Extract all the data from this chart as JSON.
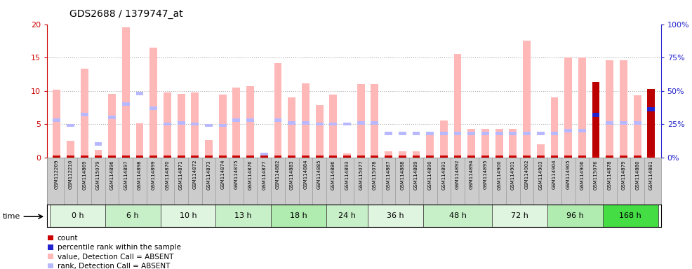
{
  "title": "GDS2688 / 1379747_at",
  "samples": [
    "GSM112209",
    "GSM112210",
    "GSM114869",
    "GSM115079",
    "GSM114896",
    "GSM114897",
    "GSM114898",
    "GSM114899",
    "GSM114870",
    "GSM114871",
    "GSM114872",
    "GSM114873",
    "GSM114874",
    "GSM114875",
    "GSM114876",
    "GSM114877",
    "GSM114882",
    "GSM114883",
    "GSM114884",
    "GSM114885",
    "GSM114886",
    "GSM114893",
    "GSM115077",
    "GSM115078",
    "GSM114887",
    "GSM114888",
    "GSM114889",
    "GSM114890",
    "GSM114891",
    "GSM114892",
    "GSM114894",
    "GSM114895",
    "GSM114900",
    "GSM114901",
    "GSM114902",
    "GSM114903",
    "GSM114904",
    "GSM114905",
    "GSM114906",
    "GSM115076",
    "GSM114878",
    "GSM114879",
    "GSM114880",
    "GSM114881"
  ],
  "time_groups": [
    {
      "label": "0 h",
      "start": 0,
      "end": 4,
      "color": "#e0f5e0"
    },
    {
      "label": "6 h",
      "start": 4,
      "end": 8,
      "color": "#c8f0c8"
    },
    {
      "label": "10 h",
      "start": 8,
      "end": 12,
      "color": "#e0f5e0"
    },
    {
      "label": "13 h",
      "start": 12,
      "end": 16,
      "color": "#c8f0c8"
    },
    {
      "label": "18 h",
      "start": 16,
      "end": 20,
      "color": "#b0ebb0"
    },
    {
      "label": "24 h",
      "start": 20,
      "end": 23,
      "color": "#c8f0c8"
    },
    {
      "label": "36 h",
      "start": 23,
      "end": 27,
      "color": "#e0f5e0"
    },
    {
      "label": "48 h",
      "start": 27,
      "end": 32,
      "color": "#c8f0c8"
    },
    {
      "label": "72 h",
      "start": 32,
      "end": 36,
      "color": "#e0f5e0"
    },
    {
      "label": "96 h",
      "start": 36,
      "end": 40,
      "color": "#b0ebb0"
    },
    {
      "label": "168 h",
      "start": 40,
      "end": 44,
      "color": "#44dd44"
    }
  ],
  "pink_values": [
    10.2,
    2.5,
    13.3,
    1.1,
    9.5,
    19.5,
    5.1,
    16.5,
    9.7,
    9.5,
    9.7,
    2.6,
    9.4,
    10.5,
    10.7,
    0.3,
    14.2,
    9.0,
    11.1,
    7.9,
    9.4,
    0.6,
    11.0,
    11.0,
    0.9,
    0.9,
    0.9,
    3.9,
    5.5,
    15.5,
    4.3,
    4.3,
    4.3,
    4.3,
    17.5,
    2.0,
    9.0,
    15.0,
    15.0,
    11.3,
    14.6,
    14.6,
    9.3,
    10.3
  ],
  "rank_pct_values": [
    28,
    24,
    32,
    10,
    30,
    40,
    48,
    37,
    25,
    26,
    25,
    24,
    24,
    28,
    28,
    2,
    28,
    26,
    26,
    25,
    25,
    25,
    26,
    26,
    18,
    18,
    18,
    18,
    18,
    18,
    18,
    18,
    18,
    18,
    18,
    18,
    18,
    20,
    20,
    32,
    26,
    26,
    26,
    36
  ],
  "present_indices": [
    39,
    43
  ],
  "ylim_left": [
    0,
    20
  ],
  "ylim_right": [
    0,
    100
  ],
  "yticks_left": [
    0,
    5,
    10,
    15,
    20
  ],
  "yticks_right": [
    0,
    25,
    50,
    75,
    100
  ],
  "ytick_right_labels": [
    "0%",
    "25%",
    "50%",
    "75%",
    "100%"
  ],
  "pink_color": "#ffb8b8",
  "light_blue_color": "#b8b8ff",
  "dark_red_color": "#bb0000",
  "blue_dot_color": "#2222cc",
  "count_color": "#cc0000",
  "bg_color": "#ffffff",
  "plot_bg": "#ffffff",
  "title_color": "#000000",
  "left_axis_color": "#cc0000",
  "right_axis_color": "#2222cc",
  "grid_color": "#888888",
  "label_area_color": "#cccccc"
}
